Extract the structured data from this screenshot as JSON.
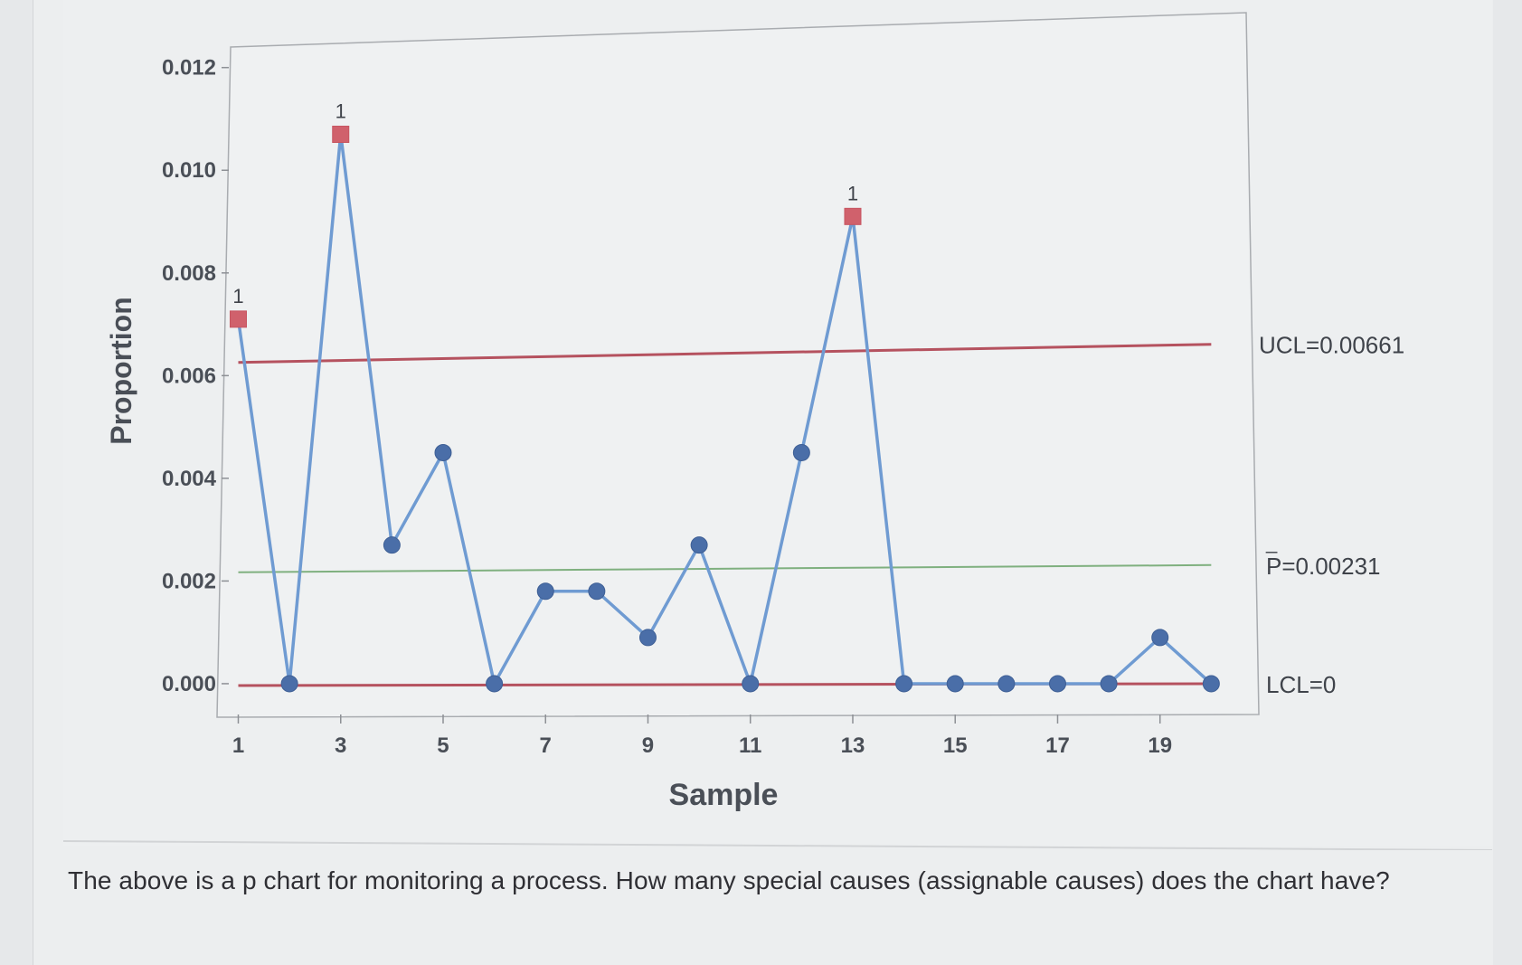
{
  "question": {
    "text": "The above is a p chart for monitoring a process. How many special causes (assignable causes) does the chart have?"
  },
  "colors": {
    "line": "#6f9bd2",
    "point": "#4a6ea8",
    "out_of_control": "#d0616c",
    "limit_line": "#b5525f",
    "center_line": "#7fb07f"
  },
  "chart_data": {
    "type": "line",
    "xlabel": "Sample",
    "ylabel": "Proportion",
    "x": [
      1,
      2,
      3,
      4,
      5,
      6,
      7,
      8,
      9,
      10,
      11,
      12,
      13,
      14,
      15,
      16,
      17,
      18,
      19,
      20
    ],
    "values": [
      0.0071,
      0.0,
      0.0107,
      0.0027,
      0.0045,
      0.0,
      0.0018,
      0.0018,
      0.0009,
      0.0027,
      0.0,
      0.0045,
      0.0091,
      0.0,
      0.0,
      0.0,
      0.0,
      0.0,
      0.0009,
      0.0
    ],
    "out_of_control": [
      1,
      3,
      13
    ],
    "flag_label": "1",
    "x_ticks": [
      1,
      3,
      5,
      7,
      9,
      11,
      13,
      15,
      17,
      19
    ],
    "x_tick_labels": [
      "1",
      "3",
      "5",
      "7",
      "9",
      "11",
      "13",
      "15",
      "17",
      "19"
    ],
    "y_ticks": [
      0.0,
      0.002,
      0.004,
      0.006,
      0.008,
      0.01,
      0.012
    ],
    "y_tick_labels": [
      "0.000",
      "0.002",
      "0.004",
      "0.006",
      "0.008",
      "0.010",
      "0.012"
    ],
    "ylim": [
      -0.0006,
      0.0124
    ],
    "xlim": [
      0.85,
      20.4
    ],
    "control_limits": {
      "ucl": 0.00661,
      "center": 0.00231,
      "lcl": 0
    },
    "limit_labels": {
      "ucl": "UCL=0.00661",
      "center": "P=0.00231",
      "center_bar": "_",
      "lcl": "LCL=0"
    }
  }
}
